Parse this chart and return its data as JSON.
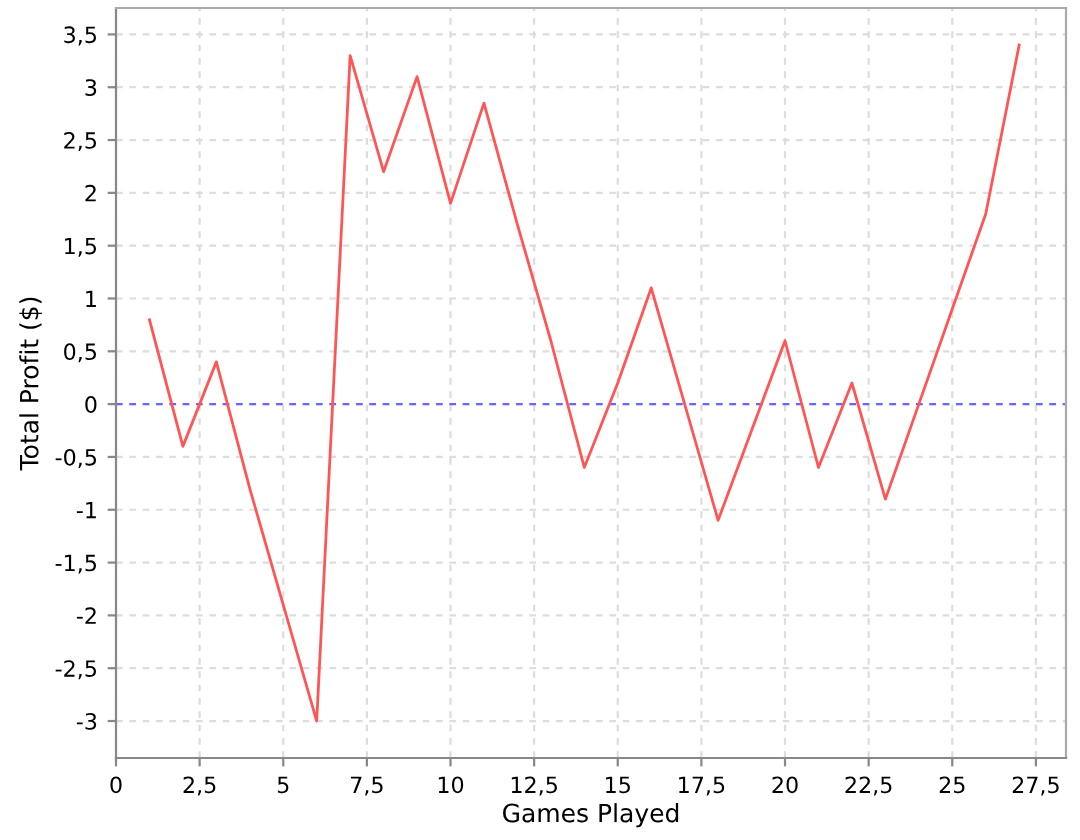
{
  "chart_data": {
    "type": "line",
    "xlabel": "Games Played",
    "ylabel": "Total Profit ($)",
    "x": [
      1,
      2,
      3,
      4,
      5,
      6,
      7,
      8,
      9,
      10,
      11,
      12,
      13,
      14,
      15,
      16,
      17,
      18,
      19,
      20,
      21,
      22,
      23,
      24,
      25,
      26,
      27
    ],
    "series": [
      {
        "color": "#ff5555",
        "values": [
          0.8,
          -0.4,
          0.4,
          -0.8,
          -1.9,
          -3.0,
          3.3,
          2.2,
          3.1,
          1.9,
          2.85,
          1.7,
          0.6,
          -0.6,
          0.2,
          1.1,
          0.0,
          -1.1,
          -0.25,
          0.6,
          -0.6,
          0.2,
          -0.9,
          0.0,
          0.9,
          1.8,
          3.4
        ]
      }
    ],
    "xlim": [
      0,
      28.4
    ],
    "ylim": [
      -3.35,
      3.75
    ],
    "xticks": [
      0,
      {
        "value": 2.5,
        "label": "2,5"
      },
      5,
      {
        "value": 7.5,
        "label": "7,5"
      },
      10,
      {
        "value": 12.5,
        "label": "12,5"
      },
      15,
      {
        "value": 17.5,
        "label": "17,5"
      },
      20,
      {
        "value": 22.5,
        "label": "22,5"
      },
      25,
      {
        "value": 27.5,
        "label": "27,5"
      }
    ],
    "yticks": [
      -3,
      {
        "value": -2.5,
        "label": "-2,5"
      },
      -2,
      {
        "value": -1.5,
        "label": "-1,5"
      },
      -1,
      {
        "value": -0.5,
        "label": "-0,5"
      },
      0,
      {
        "value": 0.5,
        "label": "0,5"
      },
      1,
      {
        "value": 1.5,
        "label": "1,5"
      },
      2,
      {
        "value": 2.5,
        "label": "2,5"
      },
      3,
      {
        "value": 3.5,
        "label": "3,5"
      }
    ],
    "ref_lines": [
      {
        "axis": "y",
        "value": 0,
        "color": "#6666ff",
        "line_style": "dashed"
      }
    ],
    "grid": true,
    "marker": "none",
    "line_style": "solid"
  }
}
